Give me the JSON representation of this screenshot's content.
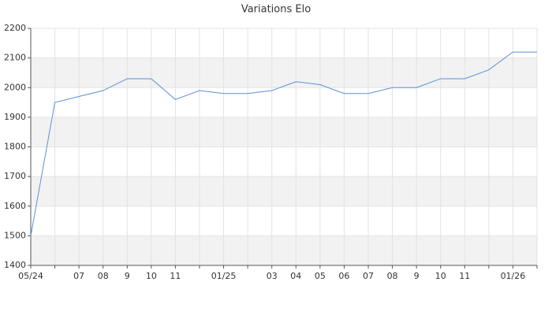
{
  "chart_data": {
    "type": "line",
    "title": "Variations Elo",
    "categories": [
      "05/24",
      null,
      "07",
      "08",
      "9",
      "10",
      "11",
      null,
      "01/25",
      null,
      "03",
      "04",
      "05",
      "06",
      "07",
      "08",
      "9",
      "10",
      "11",
      null,
      "01/26",
      null
    ],
    "values": [
      1500,
      1950,
      1970,
      1990,
      2030,
      2030,
      1960,
      1990,
      1980,
      1980,
      1990,
      2020,
      2010,
      1980,
      1980,
      2000,
      2000,
      2030,
      2030,
      2060,
      2120,
      2120
    ],
    "color": "#5b8fd9",
    "ylim": [
      1400,
      2200
    ],
    "yticks": [
      1400,
      1500,
      1600,
      1700,
      1800,
      1900,
      2000,
      2100,
      2200
    ],
    "grid": true
  }
}
